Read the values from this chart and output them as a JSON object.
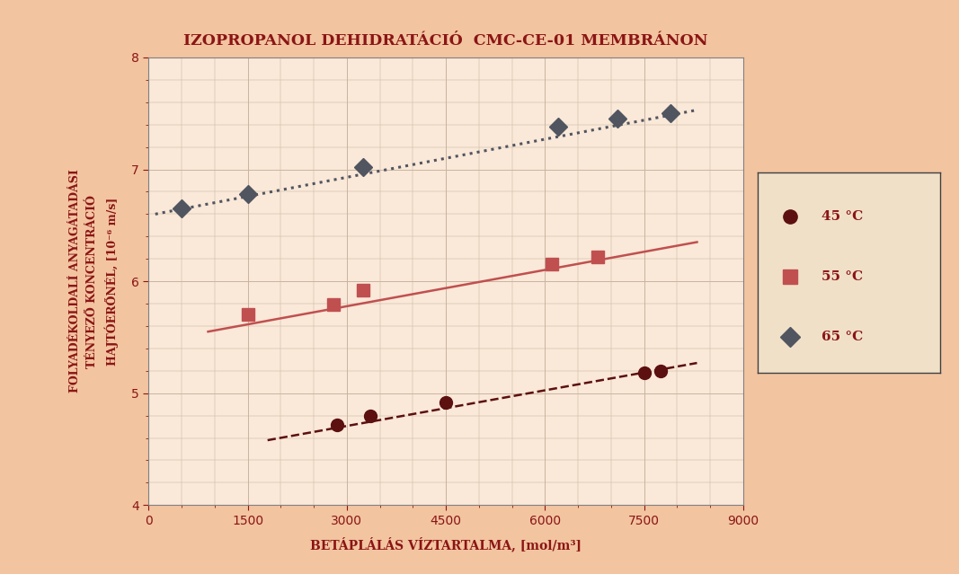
{
  "title": "IZOPROPANOL DEHIDRATÁCIÓ  CMC-CE-01 MEMBRÁNON",
  "xlabel": "BETÁPLÁLÁS VÍZTARTALMA, [mol/m³]",
  "ylabel_line1": "FOLYADÉKOLDALÍ ANYAGÁTADÁSI",
  "ylabel_line2": "TÉNYEZŐ KONCENTRÁCIÓ",
  "ylabel_line3": "HAJTÓERŐNÉL, [10⁻⁶ m/s]",
  "xlim": [
    0,
    9000
  ],
  "ylim": [
    4,
    8
  ],
  "xticks": [
    0,
    1500,
    3000,
    4500,
    6000,
    7500,
    9000
  ],
  "yticks": [
    4,
    5,
    6,
    7,
    8
  ],
  "background_color": "#F2C4A0",
  "plot_bg_color": "#FAE8D8",
  "grid_color": "#C8B4A0",
  "text_color": "#8B1515",
  "legend_bg": "#F0E0C8",
  "series_45": {
    "x": [
      2850,
      3350,
      4500,
      7500,
      7750
    ],
    "y": [
      4.72,
      4.8,
      4.92,
      5.18,
      5.2
    ],
    "color": "#5C1010",
    "marker": "o",
    "linestyle": "--",
    "label": "45 °C",
    "markersize": 10,
    "linewidth": 1.8,
    "fit_x": [
      1800,
      8300
    ],
    "fit_y": [
      4.58,
      5.27
    ]
  },
  "series_55": {
    "x": [
      1500,
      2800,
      3250,
      6100,
      6800
    ],
    "y": [
      5.7,
      5.79,
      5.92,
      6.15,
      6.22
    ],
    "color": "#C05050",
    "marker": "s",
    "linestyle": "-",
    "label": "55 °C",
    "markersize": 10,
    "linewidth": 1.8,
    "fit_x": [
      900,
      8300
    ],
    "fit_y": [
      5.55,
      6.35
    ]
  },
  "series_65": {
    "x": [
      500,
      1500,
      3250,
      6200,
      7100,
      7900
    ],
    "y": [
      6.65,
      6.78,
      7.02,
      7.38,
      7.45,
      7.5
    ],
    "color": "#505560",
    "marker": "D",
    "linestyle": ":",
    "label": "65 °C",
    "markersize": 10,
    "linewidth": 2.2,
    "fit_x": [
      100,
      8300
    ],
    "fit_y": [
      6.6,
      7.53
    ]
  }
}
